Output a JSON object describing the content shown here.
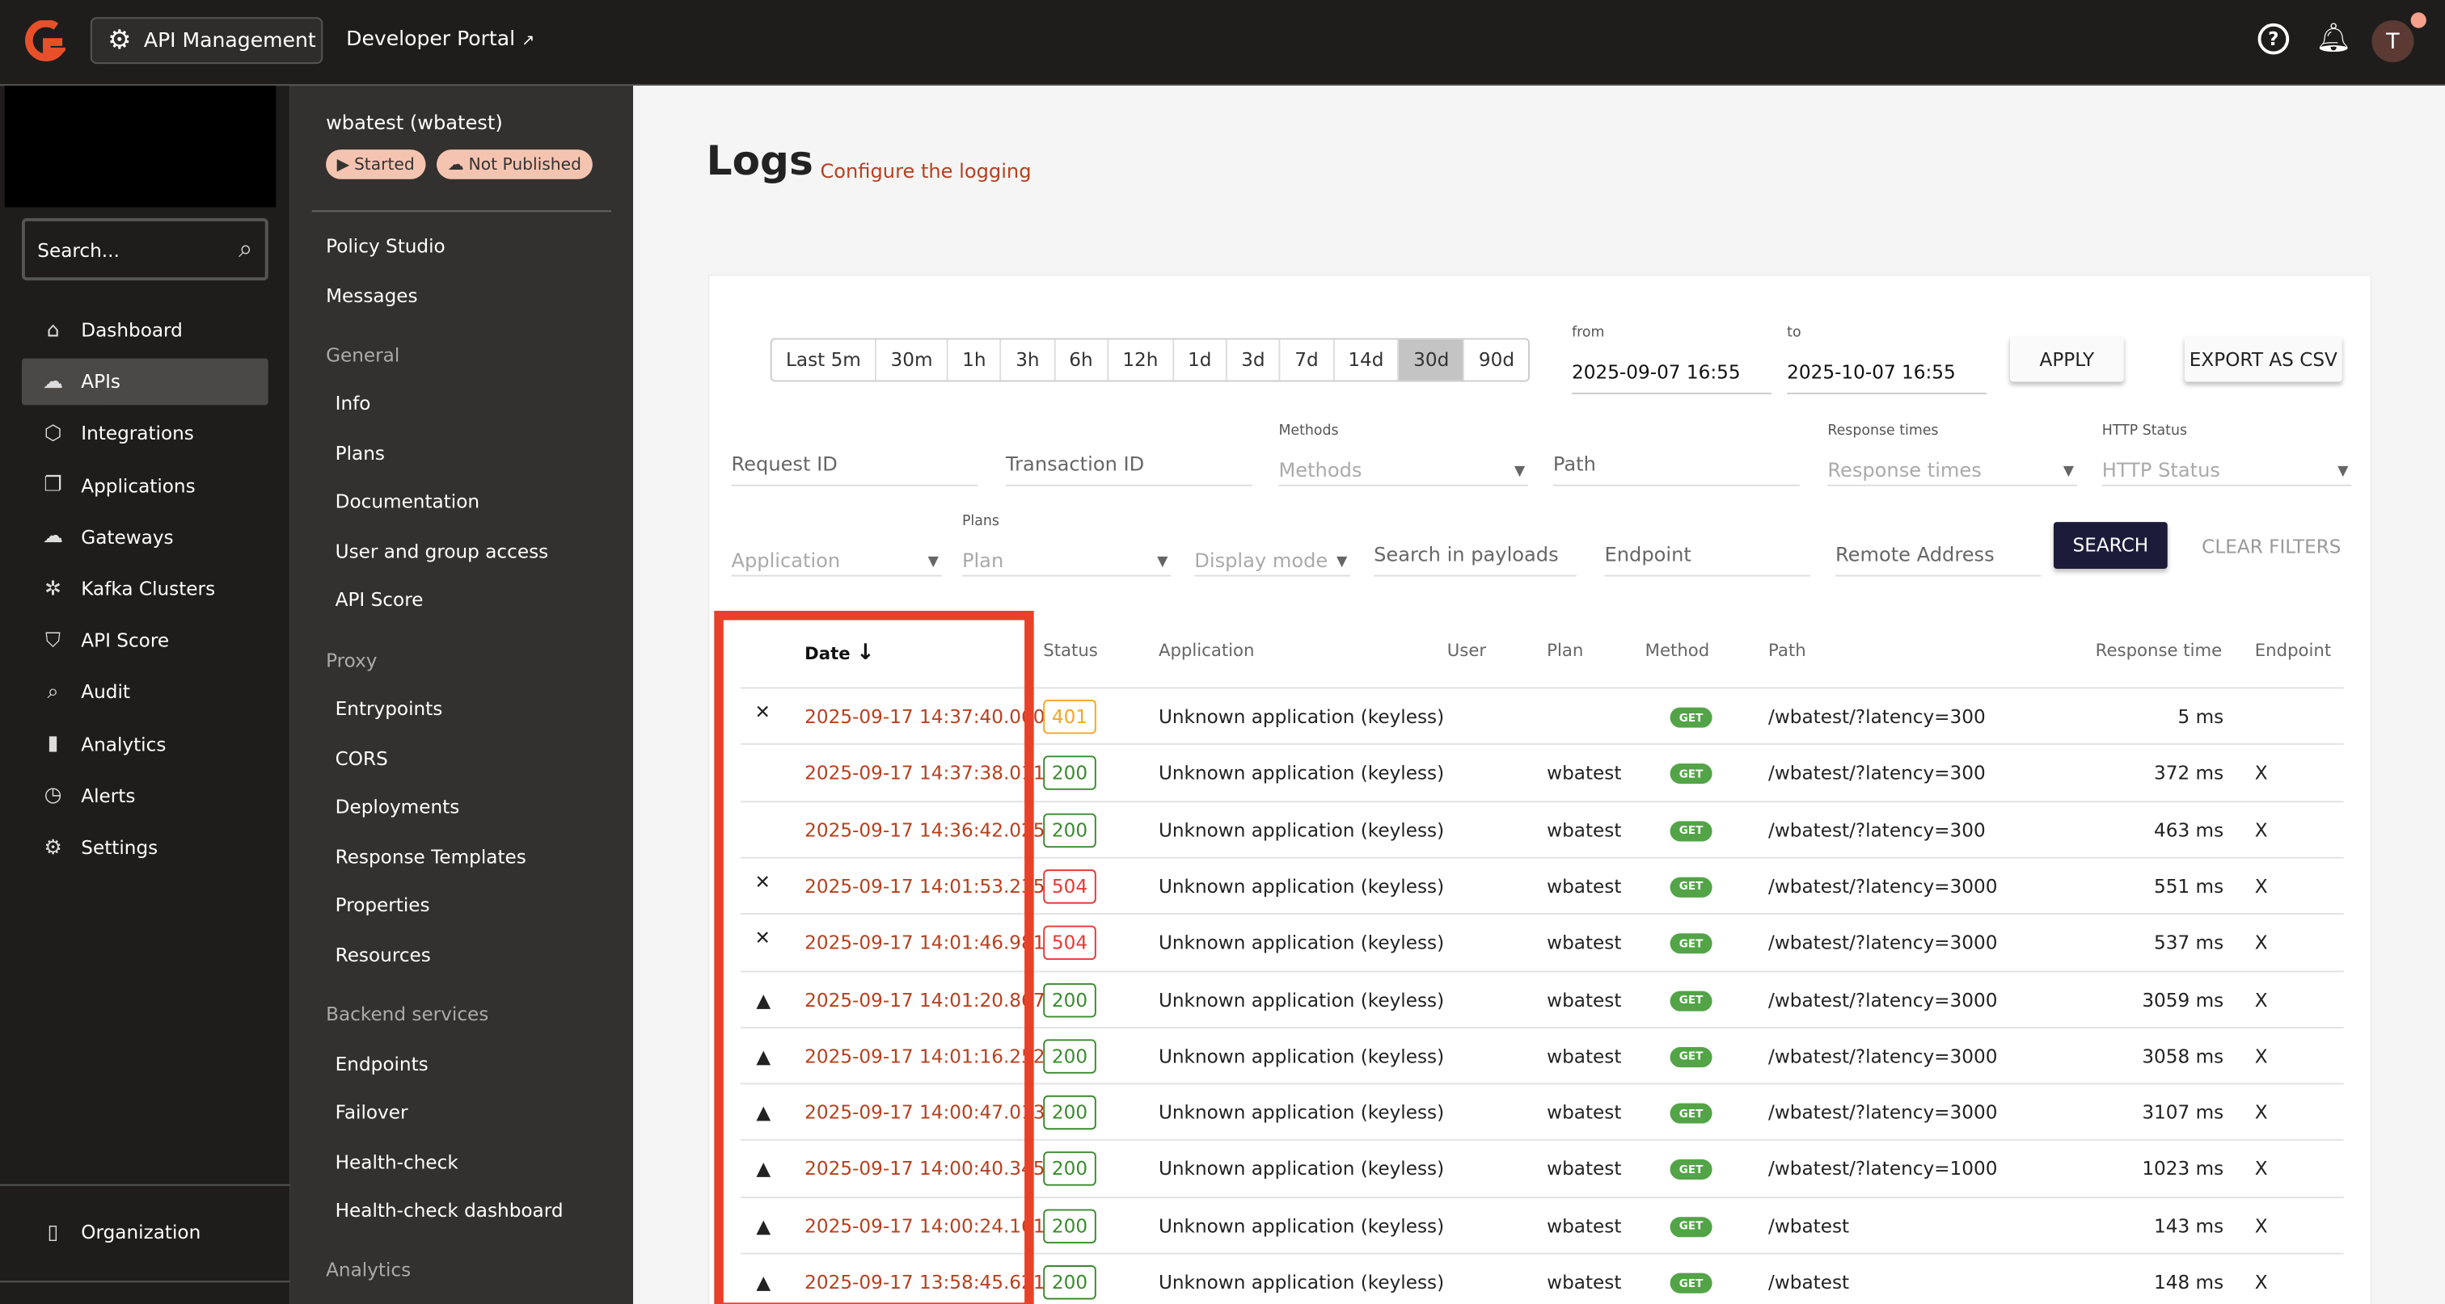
{
  "topbar": {
    "app_button": "API Management",
    "developer_portal": "Developer Portal",
    "avatar_initial": "T"
  },
  "sidebar": {
    "search_placeholder": "Search...",
    "items": [
      {
        "label": "Dashboard",
        "icon": "home-icon"
      },
      {
        "label": "APIs",
        "icon": "cloud-icon",
        "selected": true
      },
      {
        "label": "Integrations",
        "icon": "cube-icon"
      },
      {
        "label": "Applications",
        "icon": "windows-icon"
      },
      {
        "label": "Gateways",
        "icon": "cloud-gateway-icon"
      },
      {
        "label": "Kafka Clusters",
        "icon": "kafka-icon"
      },
      {
        "label": "API Score",
        "icon": "shield-icon"
      },
      {
        "label": "Audit",
        "icon": "magnify-icon"
      },
      {
        "label": "Analytics",
        "icon": "bar-chart-icon"
      },
      {
        "label": "Alerts",
        "icon": "alarm-icon"
      },
      {
        "label": "Settings",
        "icon": "gear-icon"
      }
    ],
    "organization": "Organization"
  },
  "api_menu": {
    "title": "wbatest (wbatest)",
    "badges": [
      "Started",
      "Not Published"
    ],
    "entries": [
      {
        "type": "item",
        "label": "Policy Studio"
      },
      {
        "type": "item",
        "label": "Messages"
      },
      {
        "type": "header",
        "label": "General"
      },
      {
        "type": "sub",
        "label": "Info"
      },
      {
        "type": "sub",
        "label": "Plans"
      },
      {
        "type": "sub",
        "label": "Documentation"
      },
      {
        "type": "sub",
        "label": "User and group access"
      },
      {
        "type": "sub",
        "label": "API Score"
      },
      {
        "type": "header",
        "label": "Proxy"
      },
      {
        "type": "sub",
        "label": "Entrypoints"
      },
      {
        "type": "sub",
        "label": "CORS"
      },
      {
        "type": "sub",
        "label": "Deployments"
      },
      {
        "type": "sub",
        "label": "Response Templates"
      },
      {
        "type": "sub",
        "label": "Properties"
      },
      {
        "type": "sub",
        "label": "Resources"
      },
      {
        "type": "header",
        "label": "Backend services"
      },
      {
        "type": "sub",
        "label": "Endpoints"
      },
      {
        "type": "sub",
        "label": "Failover"
      },
      {
        "type": "sub",
        "label": "Health-check"
      },
      {
        "type": "sub",
        "label": "Health-check dashboard"
      },
      {
        "type": "header",
        "label": "Analytics"
      }
    ]
  },
  "logs": {
    "title": "Logs",
    "configure_link": "Configure the logging",
    "time_ranges": [
      "Last 5m",
      "30m",
      "1h",
      "3h",
      "6h",
      "12h",
      "1d",
      "3d",
      "7d",
      "14d",
      "30d",
      "90d"
    ],
    "selected_range": "30d",
    "from_label": "from",
    "from_value": "2025-09-07 16:55",
    "to_label": "to",
    "to_value": "2025-10-07 16:55",
    "apply": "APPLY",
    "export": "EXPORT AS CSV",
    "filters": {
      "request_id": "Request ID",
      "transaction_id": "Transaction ID",
      "methods_label": "Methods",
      "methods": "Methods",
      "path": "Path",
      "response_times_label": "Response times",
      "response_times": "Response times",
      "http_status_label": "HTTP Status",
      "http_status": "HTTP Status",
      "application": "Application",
      "plans_label": "Plans",
      "plan": "Plan",
      "display_mode": "Display mode",
      "search_payloads": "Search in payloads",
      "endpoint": "Endpoint",
      "remote_address": "Remote Address"
    },
    "search": "SEARCH",
    "clear": "CLEAR FILTERS",
    "columns": [
      "Date",
      "Status",
      "Application",
      "User",
      "Plan",
      "Method",
      "Path",
      "Response time",
      "Endpoint"
    ],
    "rows": [
      {
        "icon": "error",
        "date": "2025-09-17 14:37:40.060",
        "status": "401",
        "app": "Unknown application (keyless)",
        "user": "",
        "plan": "",
        "method": "GET",
        "path": "/wbatest/?latency=300",
        "rt": "5 ms",
        "endpoint": ""
      },
      {
        "icon": "",
        "date": "2025-09-17 14:37:38.011",
        "status": "200",
        "app": "Unknown application (keyless)",
        "user": "",
        "plan": "wbatest",
        "method": "GET",
        "path": "/wbatest/?latency=300",
        "rt": "372 ms",
        "endpoint": "X"
      },
      {
        "icon": "",
        "date": "2025-09-17 14:36:42.025",
        "status": "200",
        "app": "Unknown application (keyless)",
        "user": "",
        "plan": "wbatest",
        "method": "GET",
        "path": "/wbatest/?latency=300",
        "rt": "463 ms",
        "endpoint": "X"
      },
      {
        "icon": "error",
        "date": "2025-09-17 14:01:53.235",
        "status": "504",
        "app": "Unknown application (keyless)",
        "user": "",
        "plan": "wbatest",
        "method": "GET",
        "path": "/wbatest/?latency=3000",
        "rt": "551 ms",
        "endpoint": "X"
      },
      {
        "icon": "error",
        "date": "2025-09-17 14:01:46.981",
        "status": "504",
        "app": "Unknown application (keyless)",
        "user": "",
        "plan": "wbatest",
        "method": "GET",
        "path": "/wbatest/?latency=3000",
        "rt": "537 ms",
        "endpoint": "X"
      },
      {
        "icon": "warning",
        "date": "2025-09-17 14:01:20.867",
        "status": "200",
        "app": "Unknown application (keyless)",
        "user": "",
        "plan": "wbatest",
        "method": "GET",
        "path": "/wbatest/?latency=3000",
        "rt": "3059 ms",
        "endpoint": "X"
      },
      {
        "icon": "warning",
        "date": "2025-09-17 14:01:16.252",
        "status": "200",
        "app": "Unknown application (keyless)",
        "user": "",
        "plan": "wbatest",
        "method": "GET",
        "path": "/wbatest/?latency=3000",
        "rt": "3058 ms",
        "endpoint": "X"
      },
      {
        "icon": "warning",
        "date": "2025-09-17 14:00:47.013",
        "status": "200",
        "app": "Unknown application (keyless)",
        "user": "",
        "plan": "wbatest",
        "method": "GET",
        "path": "/wbatest/?latency=3000",
        "rt": "3107 ms",
        "endpoint": "X"
      },
      {
        "icon": "warning",
        "date": "2025-09-17 14:00:40.345",
        "status": "200",
        "app": "Unknown application (keyless)",
        "user": "",
        "plan": "wbatest",
        "method": "GET",
        "path": "/wbatest/?latency=1000",
        "rt": "1023 ms",
        "endpoint": "X"
      },
      {
        "icon": "warning",
        "date": "2025-09-17 14:00:24.161",
        "status": "200",
        "app": "Unknown application (keyless)",
        "user": "",
        "plan": "wbatest",
        "method": "GET",
        "path": "/wbatest",
        "rt": "143 ms",
        "endpoint": "X"
      },
      {
        "icon": "warning",
        "date": "2025-09-17 13:58:45.621",
        "status": "200",
        "app": "Unknown application (keyless)",
        "user": "",
        "plan": "wbatest",
        "method": "GET",
        "path": "/wbatest",
        "rt": "148 ms",
        "endpoint": "X"
      }
    ]
  },
  "colors": {
    "accent": "#b8401e",
    "highlight": "#e8412a",
    "status_200": "#3a8a2e",
    "status_401": "#f5a623",
    "status_504": "#e53935",
    "search_button": "#1c1c3a"
  }
}
